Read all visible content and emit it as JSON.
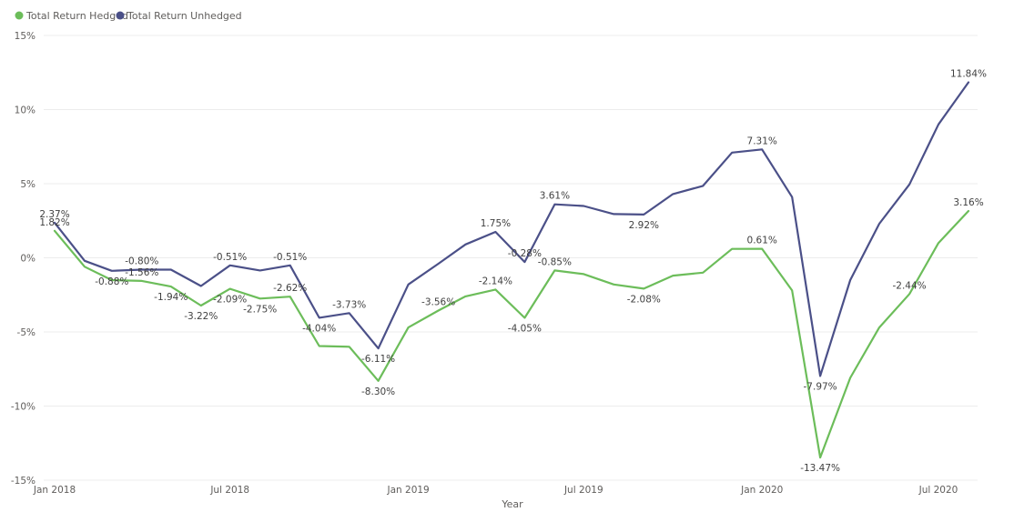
{
  "chart_data": {
    "type": "line",
    "title": "",
    "xlabel": "Year",
    "ylabel": "",
    "ylim": [
      -15,
      15
    ],
    "yticks": [
      "15%",
      "10%",
      "5%",
      "0%",
      "-5%",
      "-10%",
      "-15%"
    ],
    "ytick_values": [
      15,
      10,
      5,
      0,
      -5,
      -10,
      -15
    ],
    "xticks": [
      "Jan 2018",
      "Jul 2018",
      "Jan 2019",
      "Jul 2019",
      "Jan 2020",
      "Jul 2020"
    ],
    "xtick_dates": [
      "2018-01-01",
      "2018-07-01",
      "2019-01-01",
      "2019-07-01",
      "2020-01-01",
      "2020-07-01"
    ],
    "x": [
      "2018-01-01",
      "2018-02-01",
      "2018-03-01",
      "2018-04-01",
      "2018-05-01",
      "2018-06-01",
      "2018-07-01",
      "2018-08-01",
      "2018-09-01",
      "2018-10-01",
      "2018-11-01",
      "2018-12-01",
      "2019-01-01",
      "2019-02-01",
      "2019-03-01",
      "2019-04-01",
      "2019-05-01",
      "2019-06-01",
      "2019-07-01",
      "2019-08-01",
      "2019-09-01",
      "2019-10-01",
      "2019-11-01",
      "2019-12-01",
      "2020-01-01",
      "2020-02-01",
      "2020-03-01",
      "2020-04-01",
      "2020-05-01",
      "2020-06-01",
      "2020-07-01",
      "2020-08-01"
    ],
    "grid": true,
    "legend_position": "top-left",
    "series": [
      {
        "name": "Total Return Hedged",
        "color": "#6cbd5a",
        "values": [
          1.82,
          -0.6,
          -1.5,
          -1.56,
          -1.94,
          -3.22,
          -2.09,
          -2.75,
          -2.62,
          -5.95,
          -6.0,
          -8.3,
          -4.7,
          -3.56,
          -2.6,
          -2.14,
          -4.05,
          -0.85,
          -1.1,
          -1.8,
          -2.08,
          -1.2,
          -1.0,
          0.6,
          0.61,
          -2.2,
          -13.47,
          -8.1,
          -4.7,
          -2.44,
          1.0,
          3.16
        ]
      },
      {
        "name": "Total Return Unhedged",
        "color": "#4b5088",
        "values": [
          2.37,
          -0.2,
          -0.88,
          -0.8,
          -0.8,
          -1.9,
          -0.51,
          -0.85,
          -0.51,
          -4.04,
          -3.73,
          -6.11,
          -1.8,
          -0.4,
          0.9,
          1.75,
          -0.28,
          3.61,
          3.5,
          2.95,
          2.92,
          4.3,
          4.85,
          7.1,
          7.31,
          4.1,
          -7.97,
          -1.5,
          2.3,
          4.95,
          9.0,
          11.84
        ]
      }
    ],
    "data_labels": [
      {
        "series": 0,
        "i": 0,
        "text": "1.82%",
        "pos": "above"
      },
      {
        "series": 1,
        "i": 0,
        "text": "2.37%",
        "pos": "above"
      },
      {
        "series": 1,
        "i": 2,
        "text": "-0.88%",
        "pos": "below"
      },
      {
        "series": 0,
        "i": 3,
        "text": "-1.56%",
        "pos": "above"
      },
      {
        "series": 1,
        "i": 3,
        "text": "-0.80%",
        "pos": "above"
      },
      {
        "series": 0,
        "i": 4,
        "text": "-1.94%",
        "pos": "below"
      },
      {
        "series": 0,
        "i": 5,
        "text": "-3.22%",
        "pos": "below"
      },
      {
        "series": 0,
        "i": 6,
        "text": "-2.09%",
        "pos": "below"
      },
      {
        "series": 1,
        "i": 6,
        "text": "-0.51%",
        "pos": "above"
      },
      {
        "series": 0,
        "i": 7,
        "text": "-2.75%",
        "pos": "below"
      },
      {
        "series": 0,
        "i": 8,
        "text": "-2.62%",
        "pos": "above"
      },
      {
        "series": 1,
        "i": 8,
        "text": "-0.51%",
        "pos": "above"
      },
      {
        "series": 1,
        "i": 9,
        "text": "-4.04%",
        "pos": "below"
      },
      {
        "series": 1,
        "i": 10,
        "text": "-3.73%",
        "pos": "above"
      },
      {
        "series": 1,
        "i": 11,
        "text": "-6.11%",
        "pos": "below"
      },
      {
        "series": 0,
        "i": 11,
        "text": "-8.30%",
        "pos": "below"
      },
      {
        "series": 0,
        "i": 13,
        "text": "-3.56%",
        "pos": "above"
      },
      {
        "series": 0,
        "i": 15,
        "text": "-2.14%",
        "pos": "above"
      },
      {
        "series": 1,
        "i": 15,
        "text": "1.75%",
        "pos": "above"
      },
      {
        "series": 0,
        "i": 16,
        "text": "-4.05%",
        "pos": "below"
      },
      {
        "series": 1,
        "i": 16,
        "text": "-0.28%",
        "pos": "above"
      },
      {
        "series": 0,
        "i": 17,
        "text": "-0.85%",
        "pos": "above"
      },
      {
        "series": 1,
        "i": 17,
        "text": "3.61%",
        "pos": "above"
      },
      {
        "series": 0,
        "i": 20,
        "text": "-2.08%",
        "pos": "below"
      },
      {
        "series": 1,
        "i": 20,
        "text": "2.92%",
        "pos": "below"
      },
      {
        "series": 0,
        "i": 24,
        "text": "0.61%",
        "pos": "above"
      },
      {
        "series": 1,
        "i": 24,
        "text": "7.31%",
        "pos": "above"
      },
      {
        "series": 1,
        "i": 26,
        "text": "-7.97%",
        "pos": "below"
      },
      {
        "series": 0,
        "i": 26,
        "text": "-13.47%",
        "pos": "below"
      },
      {
        "series": 0,
        "i": 29,
        "text": "-2.44%",
        "pos": "above"
      },
      {
        "series": 0,
        "i": 31,
        "text": "3.16%",
        "pos": "above"
      },
      {
        "series": 1,
        "i": 31,
        "text": "11.84%",
        "pos": "above"
      }
    ]
  }
}
